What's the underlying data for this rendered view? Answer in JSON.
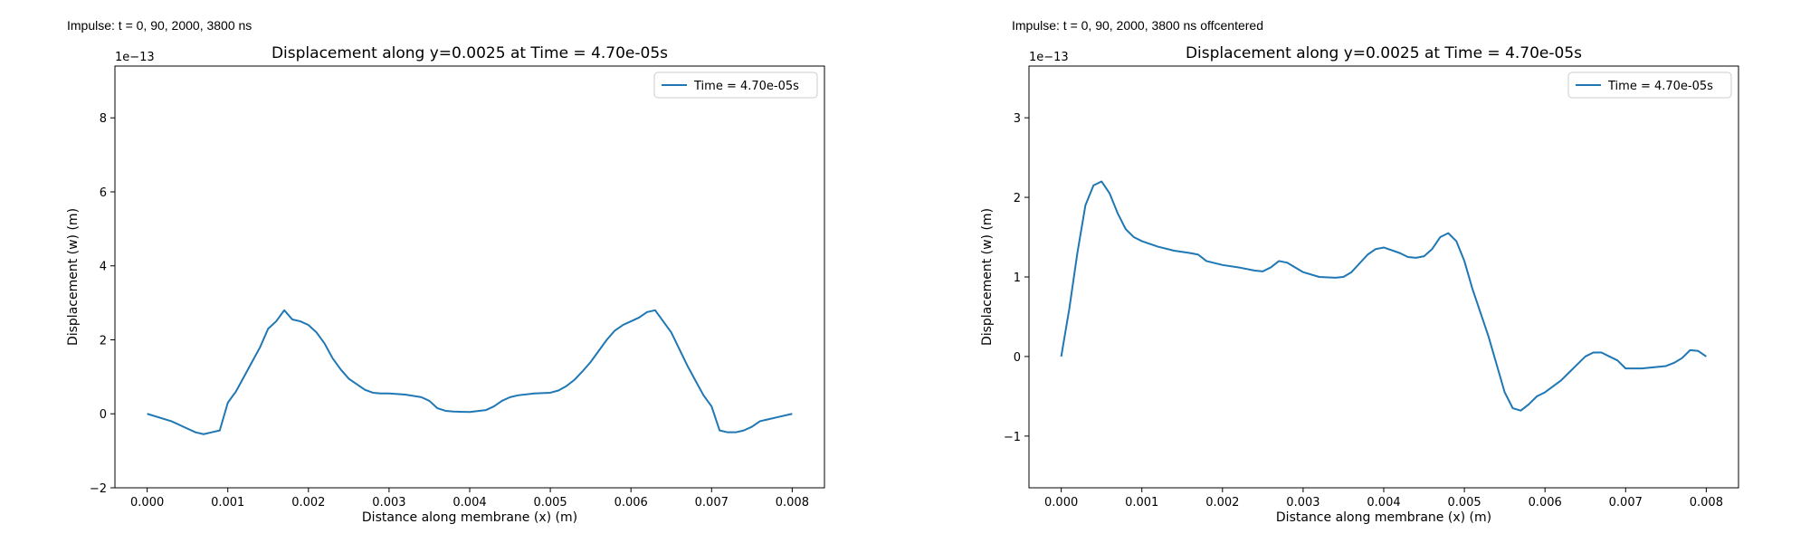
{
  "panels": [
    {
      "note": "Impulse: t = 0, 90, 2000, 3800 ns"
    },
    {
      "note": "Impulse: t = 0, 90, 2000, 3800 ns offcentered"
    }
  ],
  "chart_data": [
    {
      "type": "line",
      "title": "Displacement along y=0.0025 at Time = 4.70e-05s",
      "xlabel": "Distance along membrane (x) (m)",
      "ylabel": "Displacement (w) (m)",
      "offset_text": "1e−13",
      "xlim": [
        -0.0004,
        0.0084
      ],
      "ylim": [
        -2.0,
        9.4
      ],
      "xticks": [
        0,
        0.001,
        0.002,
        0.003,
        0.004,
        0.005,
        0.006,
        0.007,
        0.008
      ],
      "xtick_labels": [
        "0.000",
        "0.001",
        "0.002",
        "0.003",
        "0.004",
        "0.005",
        "0.006",
        "0.007",
        "0.008"
      ],
      "yticks": [
        -2,
        0,
        2,
        4,
        6,
        8
      ],
      "ytick_labels": [
        "−2",
        "0",
        "2",
        "4",
        "6",
        "8"
      ],
      "grid": false,
      "legend": "upper right",
      "series": [
        {
          "name": "Time = 4.70e-05s",
          "color": "#1f77b4",
          "x": [
            0,
            0.0003,
            0.0004,
            0.0005,
            0.0006,
            0.0007,
            0.0008,
            0.0009,
            0.001,
            0.0011,
            0.0012,
            0.0013,
            0.0014,
            0.0015,
            0.0016,
            0.0017,
            0.0018,
            0.0019,
            0.002,
            0.0021,
            0.0022,
            0.0023,
            0.0024,
            0.0025,
            0.0026,
            0.0027,
            0.0028,
            0.0029,
            0.003,
            0.0032,
            0.0034,
            0.0035,
            0.0036,
            0.0037,
            0.0038,
            0.004,
            0.0042,
            0.0043,
            0.0044,
            0.0045,
            0.0046,
            0.0048,
            0.005,
            0.0051,
            0.0052,
            0.0053,
            0.0054,
            0.0055,
            0.0056,
            0.0057,
            0.0058,
            0.0059,
            0.006,
            0.0061,
            0.0062,
            0.0063,
            0.0064,
            0.0065,
            0.0066,
            0.0067,
            0.0068,
            0.0069,
            0.007,
            0.0071,
            0.0072,
            0.0073,
            0.0074,
            0.0075,
            0.0076,
            0.0077,
            0.0078,
            0.008
          ],
          "y": [
            0.0,
            -0.2,
            -0.3,
            -0.4,
            -0.5,
            -0.55,
            -0.5,
            -0.45,
            0.3,
            0.6,
            1.0,
            1.4,
            1.8,
            2.3,
            2.5,
            2.8,
            2.55,
            2.5,
            2.4,
            2.2,
            1.9,
            1.5,
            1.2,
            0.95,
            0.8,
            0.65,
            0.57,
            0.55,
            0.55,
            0.52,
            0.45,
            0.35,
            0.15,
            0.08,
            0.06,
            0.05,
            0.1,
            0.2,
            0.35,
            0.45,
            0.5,
            0.55,
            0.57,
            0.63,
            0.75,
            0.92,
            1.15,
            1.4,
            1.7,
            2.0,
            2.25,
            2.4,
            2.5,
            2.6,
            2.75,
            2.8,
            2.5,
            2.2,
            1.75,
            1.3,
            0.9,
            0.5,
            0.2,
            -0.45,
            -0.5,
            -0.5,
            -0.45,
            -0.35,
            -0.2,
            -0.15,
            -0.1,
            0.0
          ]
        }
      ]
    },
    {
      "type": "line",
      "title": "Displacement along y=0.0025 at Time = 4.70e-05s",
      "xlabel": "Distance along membrane (x) (m)",
      "ylabel": "Displacement (w) (m)",
      "offset_text": "1e−13",
      "xlim": [
        -0.0004,
        0.0084
      ],
      "ylim": [
        -1.65,
        3.65
      ],
      "xticks": [
        0,
        0.001,
        0.002,
        0.003,
        0.004,
        0.005,
        0.006,
        0.007,
        0.008
      ],
      "xtick_labels": [
        "0.000",
        "0.001",
        "0.002",
        "0.003",
        "0.004",
        "0.005",
        "0.006",
        "0.007",
        "0.008"
      ],
      "yticks": [
        -1,
        0,
        1,
        2,
        3
      ],
      "ytick_labels": [
        "−1",
        "0",
        "1",
        "2",
        "3"
      ],
      "grid": false,
      "legend": "upper right",
      "series": [
        {
          "name": "Time = 4.70e-05s",
          "color": "#1f77b4",
          "x": [
            0,
            0.0001,
            0.0002,
            0.0003,
            0.0004,
            0.0005,
            0.0006,
            0.0007,
            0.0008,
            0.0009,
            0.001,
            0.0012,
            0.0014,
            0.0016,
            0.0017,
            0.0018,
            0.002,
            0.0022,
            0.0024,
            0.0025,
            0.0026,
            0.0027,
            0.0028,
            0.003,
            0.0032,
            0.0034,
            0.0035,
            0.0036,
            0.0038,
            0.0039,
            0.004,
            0.0042,
            0.0043,
            0.0044,
            0.0045,
            0.0046,
            0.0047,
            0.0048,
            0.0049,
            0.005,
            0.0051,
            0.0052,
            0.0053,
            0.0054,
            0.0055,
            0.0056,
            0.0057,
            0.0058,
            0.0059,
            0.006,
            0.0062,
            0.0063,
            0.0064,
            0.0065,
            0.0066,
            0.0067,
            0.0068,
            0.0069,
            0.007,
            0.0071,
            0.0072,
            0.0074,
            0.0075,
            0.0076,
            0.0077,
            0.0078,
            0.0079,
            0.008
          ],
          "y": [
            0.0,
            0.6,
            1.3,
            1.9,
            2.15,
            2.2,
            2.05,
            1.8,
            1.6,
            1.5,
            1.45,
            1.38,
            1.33,
            1.3,
            1.28,
            1.2,
            1.15,
            1.12,
            1.08,
            1.07,
            1.12,
            1.2,
            1.18,
            1.06,
            1.0,
            0.99,
            1.0,
            1.06,
            1.28,
            1.35,
            1.37,
            1.3,
            1.25,
            1.24,
            1.26,
            1.35,
            1.5,
            1.55,
            1.45,
            1.2,
            0.85,
            0.55,
            0.25,
            -0.1,
            -0.45,
            -0.65,
            -0.68,
            -0.6,
            -0.5,
            -0.45,
            -0.3,
            -0.2,
            -0.1,
            0.0,
            0.05,
            0.05,
            0.0,
            -0.05,
            -0.15,
            -0.15,
            -0.15,
            -0.13,
            -0.12,
            -0.08,
            -0.02,
            0.08,
            0.07,
            0.0
          ]
        }
      ]
    }
  ]
}
